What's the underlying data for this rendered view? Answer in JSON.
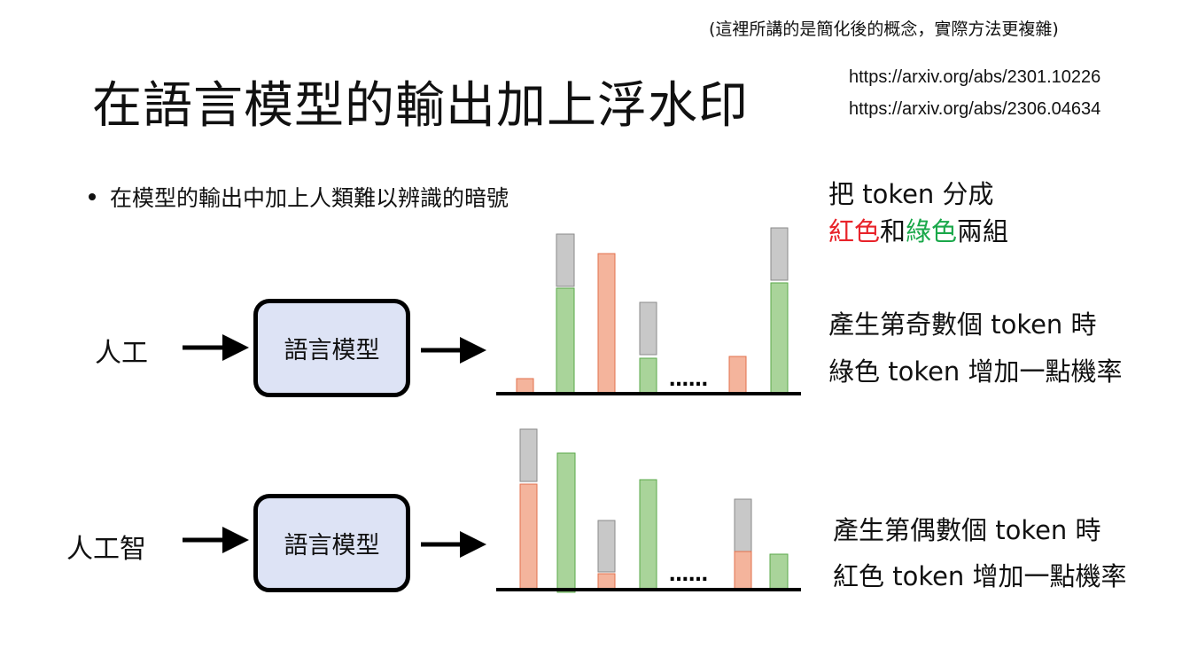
{
  "note": "(這裡所講的是簡化後的概念，實際方法更複雜)",
  "title": "在語言模型的輸出加上浮水印",
  "references": [
    "https://arxiv.org/abs/2301.10226",
    "https://arxiv.org/abs/2306.04634"
  ],
  "bullet": "在模型的輸出中加上人類難以辨識的暗號",
  "split_text": {
    "line1": "把 token 分成",
    "red_word": "紅色",
    "and_word": "和",
    "green_word": "綠色",
    "groups_word": "兩組"
  },
  "rows": [
    {
      "input": "人工",
      "model": "語言模型",
      "ellipsis": "……",
      "rule_line1": "產生第奇數個 token 時",
      "rule_line2": "綠色 token 增加一點機率"
    },
    {
      "input": "人工智",
      "model": "語言模型",
      "ellipsis": "……",
      "rule_line1": "產生第偶數個 token 時",
      "rule_line2": "紅色 token 增加一點機率"
    }
  ],
  "colors": {
    "red_bar": "#f4b49c",
    "red_bar_edge": "#e2704c",
    "green_bar": "#a9d49a",
    "green_bar_edge": "#5aa84a",
    "gray_bar": "#c8c8c8",
    "gray_bar_edge": "#8a8a8a",
    "red_text": "#e8232a",
    "green_text": "#1aa84a",
    "box_fill": "#dde3f5"
  }
}
